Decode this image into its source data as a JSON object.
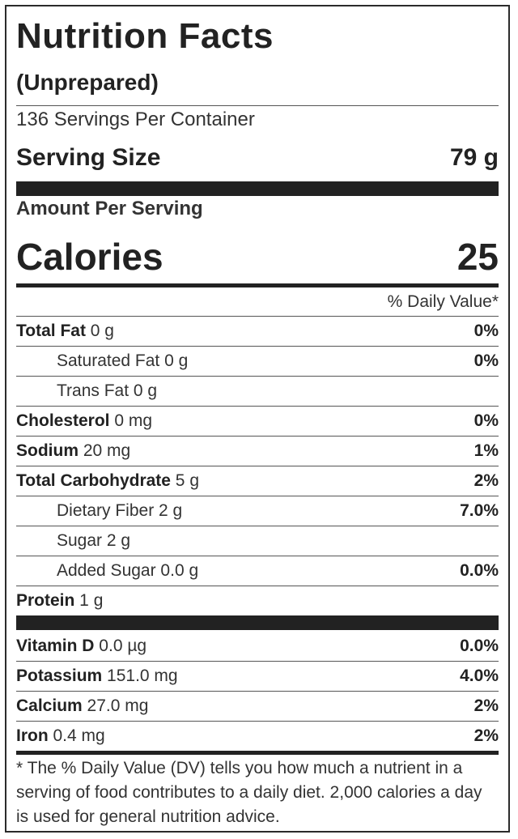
{
  "label": {
    "title": "Nutrition Facts",
    "subtitle": "(Unprepared)",
    "servings_per_container": "136 Servings Per Container",
    "serving_size_label": "Serving Size",
    "serving_size_value": "79 g",
    "amount_per_serving": "Amount Per Serving",
    "calories_label": "Calories",
    "calories_value": "25",
    "dv_header": "% Daily Value*",
    "nutrients": [
      {
        "name": "Total Fat",
        "amount": " 0 g",
        "dv": "0%"
      },
      {
        "name": "Saturated Fat 0 g",
        "amount": "",
        "dv": "0%"
      },
      {
        "name": "Trans Fat 0 g",
        "amount": "",
        "dv": ""
      },
      {
        "name": "Cholesterol",
        "amount": " 0 mg",
        "dv": "0%"
      },
      {
        "name": "Sodium",
        "amount": " 20 mg",
        "dv": "1%"
      },
      {
        "name": "Total Carbohydrate",
        "amount": " 5 g",
        "dv": "2%"
      },
      {
        "name": "Dietary Fiber 2 g",
        "amount": "",
        "dv": "7.0%"
      },
      {
        "name": "Sugar 2 g",
        "amount": "",
        "dv": ""
      },
      {
        "name": "Added Sugar 0.0 g",
        "amount": "",
        "dv": "0.0%"
      },
      {
        "name": "Protein",
        "amount": " 1 g",
        "dv": ""
      }
    ],
    "vitamins": [
      {
        "name": "Vitamin D",
        "amount": " 0.0 µg",
        "dv": "0.0%"
      },
      {
        "name": "Potassium",
        "amount": " 151.0 mg",
        "dv": "4.0%"
      },
      {
        "name": "Calcium",
        "amount": " 27.0 mg",
        "dv": "2%"
      },
      {
        "name": "Iron",
        "amount": " 0.4 mg",
        "dv": "2%"
      }
    ],
    "footnote": "* The % Daily Value (DV) tells you how much a nutrient in a serving of food contributes to a daily diet. 2,000 calories a day is used for general nutrition advice."
  }
}
